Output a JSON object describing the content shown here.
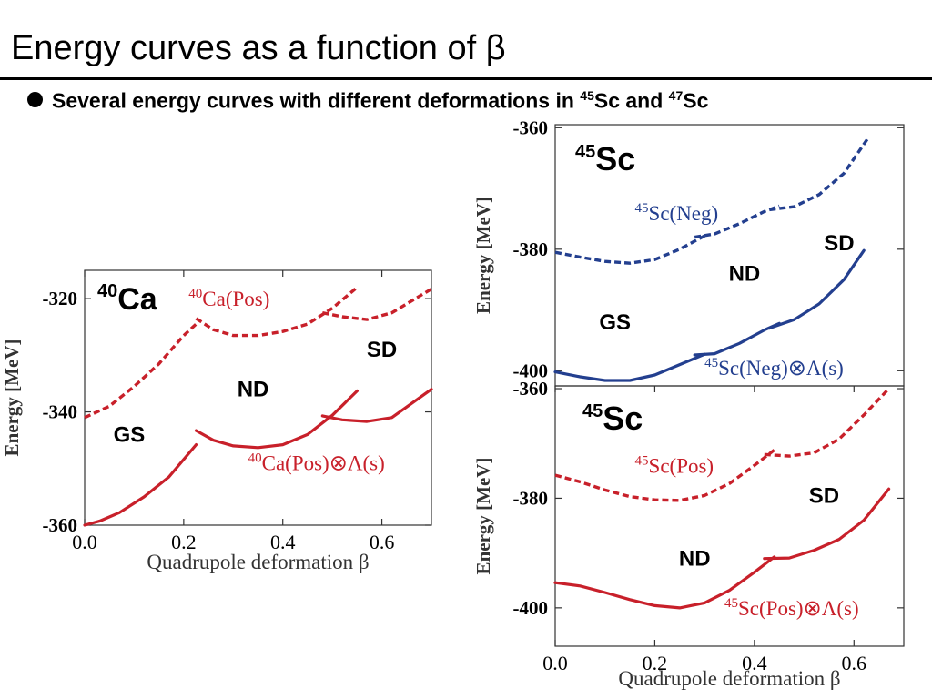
{
  "slide": {
    "title": "Energy curves as a function of β",
    "bullet_text": "Several energy curves with different deformations in ",
    "bullet_iso1_mass": "45",
    "bullet_iso1_sym": "Sc",
    "bullet_and": " and ",
    "bullet_iso2_mass": "47",
    "bullet_iso2_sym": "Sc"
  },
  "chart_data": [
    {
      "type": "line",
      "nucleus_mass": "40",
      "nucleus_symbol": "Ca",
      "xlabel": "Quadrupole deformation β",
      "ylabel": "Energy [MeV]",
      "xlim": [
        0,
        0.7
      ],
      "ylim": [
        -360,
        -315
      ],
      "xticks": [
        "0.0",
        "0.2",
        "0.4",
        "0.6"
      ],
      "xtick_values": [
        0,
        0.2,
        0.4,
        0.6
      ],
      "yticks": [
        "-320",
        "-340",
        "-360"
      ],
      "ytick_values": [
        -320,
        -340,
        -360
      ],
      "regions": [
        {
          "text": "GS",
          "x": 0.09,
          "y": -344
        },
        {
          "text": "ND",
          "x": 0.34,
          "y": -336
        },
        {
          "text": "SD",
          "x": 0.6,
          "y": -329
        }
      ],
      "series": [
        {
          "name_mass": "40",
          "name_body": "Ca(Pos)",
          "name_suffix": "",
          "color": "#c8202a",
          "style": "dashed",
          "label_x": 0.21,
          "label_y": -320,
          "segments": [
            [
              [
                0,
                -341
              ],
              [
                0.05,
                -339
              ],
              [
                0.1,
                -335.5
              ],
              [
                0.15,
                -331.5
              ],
              [
                0.2,
                -326.5
              ],
              [
                0.225,
                -324.5
              ]
            ],
            [
              [
                0.225,
                -323.5
              ],
              [
                0.26,
                -325.5
              ],
              [
                0.3,
                -326.5
              ],
              [
                0.35,
                -326.5
              ],
              [
                0.4,
                -325.8
              ],
              [
                0.45,
                -324.5
              ],
              [
                0.5,
                -321.7
              ],
              [
                0.55,
                -318
              ]
            ],
            [
              [
                0.48,
                -322.5
              ],
              [
                0.52,
                -323.2
              ],
              [
                0.57,
                -323.7
              ],
              [
                0.62,
                -322.5
              ],
              [
                0.7,
                -318.3
              ]
            ]
          ]
        },
        {
          "name_mass": "40",
          "name_body": "Ca(Pos)",
          "name_suffix": "Λ(s)",
          "color": "#c8202a",
          "style": "solid",
          "label_x": 0.33,
          "label_y": -349,
          "segments": [
            [
              [
                0,
                -360
              ],
              [
                0.03,
                -359.3
              ],
              [
                0.07,
                -357.8
              ],
              [
                0.12,
                -355
              ],
              [
                0.17,
                -351.5
              ],
              [
                0.225,
                -345.8
              ]
            ],
            [
              [
                0.225,
                -343.3
              ],
              [
                0.26,
                -345
              ],
              [
                0.3,
                -346
              ],
              [
                0.35,
                -346.3
              ],
              [
                0.4,
                -345.8
              ],
              [
                0.45,
                -344
              ],
              [
                0.5,
                -340.6
              ],
              [
                0.55,
                -336.3
              ]
            ],
            [
              [
                0.48,
                -340.7
              ],
              [
                0.52,
                -341.4
              ],
              [
                0.57,
                -341.7
              ],
              [
                0.62,
                -341
              ],
              [
                0.7,
                -336
              ]
            ]
          ]
        }
      ]
    },
    {
      "type": "line",
      "nucleus_mass": "45",
      "nucleus_symbol": "Sc",
      "ylabel": "Energy [MeV]",
      "xlim": [
        0,
        0.7
      ],
      "ylim": [
        -402.5,
        -359.5
      ],
      "yticks": [
        "-360",
        "-380",
        "-400"
      ],
      "ytick_values": [
        -360,
        -380,
        -400
      ],
      "regions": [
        {
          "text": "GS",
          "x": 0.12,
          "y": -392
        },
        {
          "text": "ND",
          "x": 0.38,
          "y": -384
        },
        {
          "text": "SD",
          "x": 0.57,
          "y": -379
        }
      ],
      "series": [
        {
          "name_mass": "45",
          "name_body": "Sc(Neg)",
          "name_suffix": "",
          "color": "#233f8f",
          "style": "dashed",
          "label_x": 0.16,
          "label_y": -374,
          "segments": [
            [
              [
                0,
                -380.5
              ],
              [
                0.05,
                -381.3
              ],
              [
                0.1,
                -382
              ],
              [
                0.15,
                -382.3
              ],
              [
                0.2,
                -381.7
              ],
              [
                0.25,
                -380
              ],
              [
                0.3,
                -377.8
              ]
            ],
            [
              [
                0.28,
                -378
              ],
              [
                0.32,
                -377.5
              ],
              [
                0.37,
                -375.8
              ],
              [
                0.42,
                -373.8
              ],
              [
                0.45,
                -372.9
              ]
            ],
            [
              [
                0.43,
                -373.5
              ],
              [
                0.48,
                -373
              ],
              [
                0.53,
                -371
              ],
              [
                0.58,
                -367.5
              ],
              [
                0.63,
                -361.5
              ]
            ]
          ]
        },
        {
          "name_mass": "45",
          "name_body": "Sc(Neg)",
          "name_suffix": "Λ(s)",
          "color": "#233f8f",
          "style": "solid",
          "label_x": 0.3,
          "label_y": -399.5,
          "segments": [
            [
              [
                0,
                -400.2
              ],
              [
                0.05,
                -401
              ],
              [
                0.1,
                -401.6
              ],
              [
                0.15,
                -401.6
              ],
              [
                0.2,
                -400.7
              ],
              [
                0.25,
                -399
              ],
              [
                0.3,
                -397.3
              ]
            ],
            [
              [
                0.28,
                -397.4
              ],
              [
                0.32,
                -397.2
              ],
              [
                0.37,
                -395.5
              ],
              [
                0.42,
                -393.3
              ],
              [
                0.45,
                -392.2
              ]
            ],
            [
              [
                0.43,
                -393
              ],
              [
                0.48,
                -391.6
              ],
              [
                0.53,
                -389
              ],
              [
                0.58,
                -385
              ],
              [
                0.62,
                -380.2
              ]
            ]
          ]
        }
      ]
    },
    {
      "type": "line",
      "nucleus_mass": "45",
      "nucleus_symbol": "Sc",
      "xlabel": "Quadrupole deformation β",
      "ylabel": "Energy [MeV]",
      "xlim": [
        0,
        0.7
      ],
      "ylim": [
        -407,
        -359.5
      ],
      "xticks": [
        "0.0",
        "0.2",
        "0.4",
        "0.6"
      ],
      "xtick_values": [
        0,
        0.2,
        0.4,
        0.6
      ],
      "yticks": [
        "-360",
        "-380",
        "-400"
      ],
      "ytick_values": [
        -360,
        -380,
        -400
      ],
      "regions": [
        {
          "text": "ND",
          "x": 0.28,
          "y": -391
        },
        {
          "text": "SD",
          "x": 0.54,
          "y": -379.5
        }
      ],
      "series": [
        {
          "name_mass": "45",
          "name_body": "Sc(Pos)",
          "name_suffix": "",
          "color": "#c8202a",
          "style": "dashed",
          "label_x": 0.16,
          "label_y": -374,
          "segments": [
            [
              [
                0,
                -375.8
              ],
              [
                0.05,
                -377
              ],
              [
                0.1,
                -378.5
              ],
              [
                0.15,
                -379.7
              ],
              [
                0.2,
                -380.3
              ],
              [
                0.25,
                -380.4
              ],
              [
                0.3,
                -379.5
              ],
              [
                0.35,
                -377.3
              ],
              [
                0.4,
                -374
              ],
              [
                0.44,
                -371.2
              ]
            ],
            [
              [
                0.42,
                -372
              ],
              [
                0.47,
                -372.3
              ],
              [
                0.52,
                -371.7
              ],
              [
                0.57,
                -369.2
              ],
              [
                0.62,
                -364.8
              ],
              [
                0.67,
                -360
              ]
            ]
          ]
        },
        {
          "name_mass": "45",
          "name_body": "Sc(Pos)",
          "name_suffix": "Λ(s)",
          "color": "#c8202a",
          "style": "solid",
          "label_x": 0.34,
          "label_y": -400,
          "segments": [
            [
              [
                0,
                -395.4
              ],
              [
                0.05,
                -396
              ],
              [
                0.1,
                -397.2
              ],
              [
                0.15,
                -398.5
              ],
              [
                0.2,
                -399.6
              ],
              [
                0.25,
                -400
              ],
              [
                0.3,
                -399.1
              ],
              [
                0.35,
                -396.8
              ],
              [
                0.4,
                -393.5
              ],
              [
                0.44,
                -390.7
              ]
            ],
            [
              [
                0.42,
                -391
              ],
              [
                0.47,
                -390.9
              ],
              [
                0.52,
                -389.5
              ],
              [
                0.57,
                -387.5
              ],
              [
                0.62,
                -384
              ],
              [
                0.67,
                -378.3
              ]
            ]
          ]
        }
      ]
    }
  ]
}
